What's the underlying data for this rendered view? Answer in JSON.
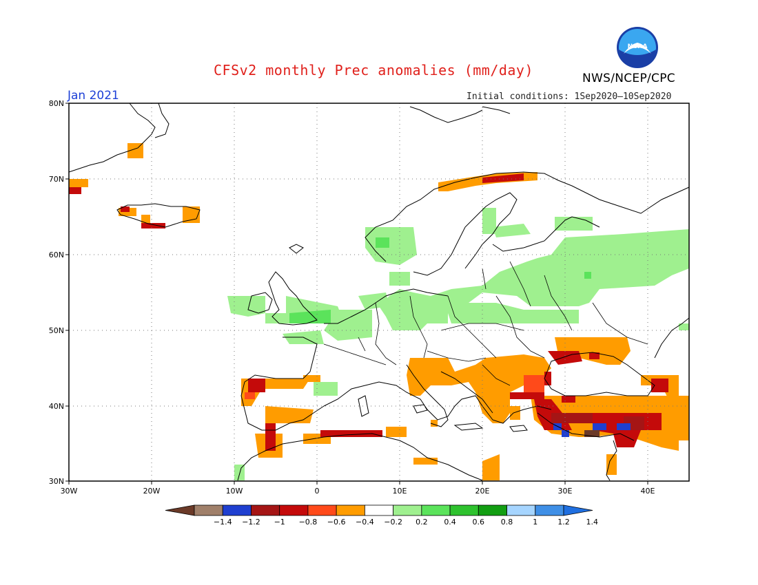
{
  "header": {
    "title": "CFSv2 monthly Prec anomalies (mm/day)",
    "agency": "NWS/NCEP/CPC",
    "period": "Jan 2021",
    "initial_conditions": "Initial conditions: 1Sep2020–10Sep2020",
    "logo_text": "NOAA"
  },
  "map": {
    "lat_labels": [
      "80N",
      "70N",
      "60N",
      "50N",
      "40N",
      "30N"
    ],
    "lon_labels": [
      "30W",
      "20W",
      "10W",
      "0",
      "10E",
      "20E",
      "30E",
      "40E"
    ]
  },
  "colorbar": {
    "labels": [
      "-1.4",
      "-1.2",
      "-1",
      "-0.8",
      "-0.6",
      "-0.4",
      "-0.2",
      "0.2",
      "0.4",
      "0.6",
      "0.8",
      "1",
      "1.2",
      "1.4"
    ],
    "colors": [
      "#6b3a28",
      "#a0806a",
      "#1f3fd0",
      "#a51515",
      "#c40a0a",
      "#ff4a1a",
      "#ff9c00",
      "#ffffff",
      "#9ff08f",
      "#5be35b",
      "#2ec22e",
      "#129e12",
      "#a6d5ff",
      "#3f8fe6",
      "#1f6fe0"
    ]
  },
  "colors": {
    "wet_light": "#9ff08f",
    "wet_mid": "#5be35b",
    "dry_orange": "#ff9c00",
    "dry_red": "#ff4a1a",
    "dry_dark": "#c40a0a",
    "dry_deeper": "#a51515",
    "dry_brown": "#6b3a28",
    "negative_blue": "#1f3fd0",
    "title_red": "#e0201b",
    "period_blue": "#1c3fd6"
  }
}
